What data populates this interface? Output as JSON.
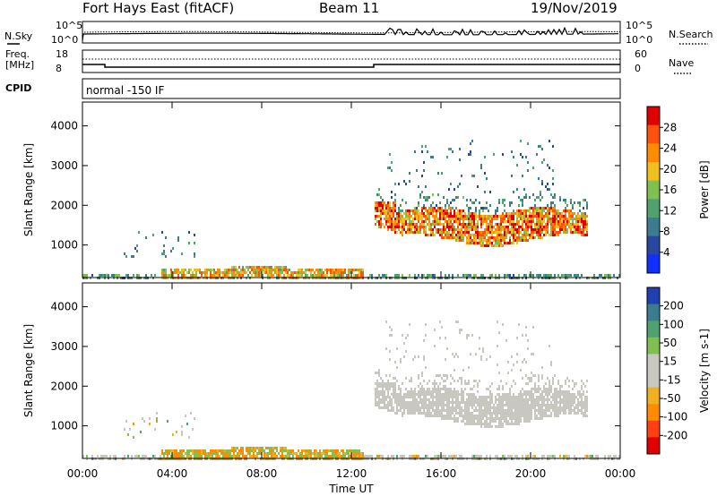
{
  "header": {
    "title": "Fort Hays East (fitACF)",
    "beam": "Beam 11",
    "date": "19/Nov/2019"
  },
  "sky_panel": {
    "left_label": "N.Sky",
    "left_ticks": [
      "10^5",
      "10^0"
    ],
    "right_ticks": [
      "10^5",
      "10^0"
    ],
    "right_label": "N.Search"
  },
  "freq_panel": {
    "left_label_1": "Freq.",
    "left_label_2": "[MHz]",
    "left_ticks": [
      "18",
      "8"
    ],
    "right_ticks": [
      "60",
      "0"
    ],
    "right_label": "Nave"
  },
  "cpid_panel": {
    "left_label": "CPID",
    "mode_text": "normal -150 IF"
  },
  "colors": {
    "power_scale": [
      "#1030ff",
      "#2848a0",
      "#3c7c90",
      "#50a070",
      "#80c050",
      "#f0c020",
      "#ff8c00",
      "#ff5010",
      "#e00000"
    ],
    "velocity_scale": [
      "#e00000",
      "#ff4010",
      "#ff8c00",
      "#f0b020",
      "#c8c8c0",
      "#c8c8c0",
      "#80c050",
      "#50a070",
      "#3c7c90",
      "#2040b0"
    ],
    "ground_scatter": "#c8c8c0"
  },
  "chart_data": [
    {
      "type": "heatmap",
      "name": "power",
      "ylabel": "Slant Range [km]",
      "y_ticks": [
        "1000",
        "2000",
        "3000",
        "4000"
      ],
      "ylim": [
        180,
        4600
      ],
      "x_ticks": [
        "00:00",
        "04:00",
        "08:00",
        "12:00",
        "16:00",
        "20:00",
        "00:00"
      ],
      "xlim_hours": [
        0,
        24
      ],
      "colorbar": {
        "label": "Power [dB]",
        "ticks": [
          "4",
          "8",
          "12",
          "16",
          "20",
          "24",
          "28"
        ],
        "range": [
          0,
          30
        ]
      },
      "features": [
        {
          "hours": [
            0,
            24
          ],
          "range_km": [
            180,
            350
          ],
          "level_db": 14,
          "desc": "near-range band"
        },
        {
          "hours": [
            3.5,
            12.5
          ],
          "range_km": [
            200,
            450
          ],
          "level_db": 22
        },
        {
          "hours": [
            13,
            22.5
          ],
          "range_km": [
            1100,
            1950
          ],
          "level_db": 22
        },
        {
          "hours": [
            13,
            22.5
          ],
          "range_km": [
            1900,
            2300
          ],
          "level_db": 10
        }
      ]
    },
    {
      "type": "heatmap",
      "name": "velocity",
      "ylabel": "Slant Range [km]",
      "xlabel": "Time UT",
      "y_ticks": [
        "1000",
        "2000",
        "3000",
        "4000"
      ],
      "ylim": [
        180,
        4600
      ],
      "x_ticks": [
        "00:00",
        "04:00",
        "08:00",
        "12:00",
        "16:00",
        "20:00",
        "00:00"
      ],
      "xlim_hours": [
        0,
        24
      ],
      "colorbar": {
        "label": "Velocity [m s-1]",
        "ticks": [
          "-200",
          "-100",
          "-50",
          "-15",
          "15",
          "50",
          "100",
          "200"
        ],
        "range": [
          -250,
          250
        ]
      },
      "features": [
        {
          "hours": [
            0,
            24
          ],
          "range_km": [
            180,
            450
          ],
          "velocity": -60
        },
        {
          "hours": [
            5,
            7.5
          ],
          "range_km": [
            250,
            400
          ],
          "velocity": 30
        },
        {
          "hours": [
            13,
            22.5
          ],
          "range_km": [
            1100,
            2300
          ],
          "velocity": 0,
          "desc": "ground scatter"
        }
      ]
    }
  ]
}
